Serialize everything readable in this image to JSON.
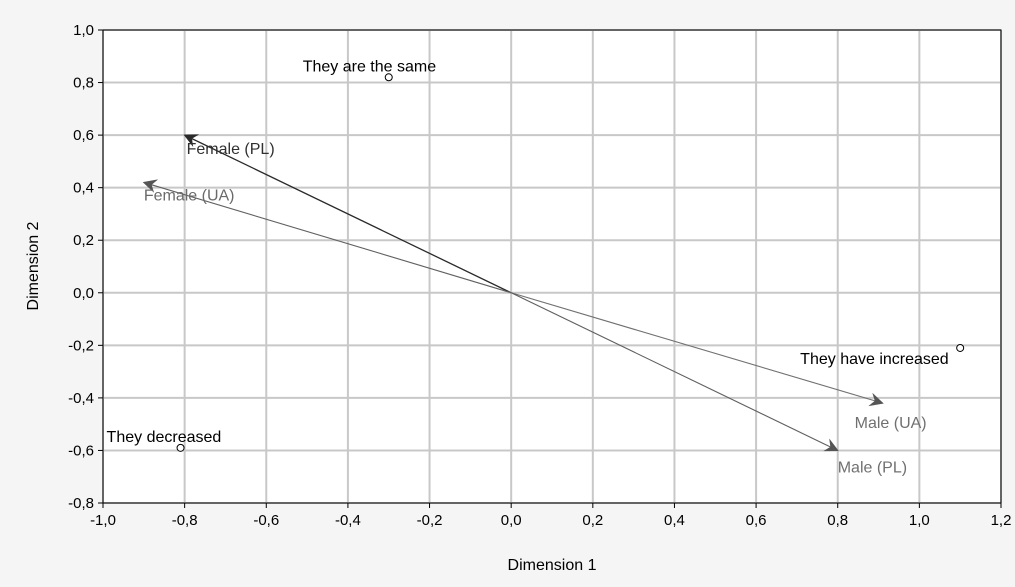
{
  "chart_data": {
    "type": "scatter",
    "xlabel": "Dimension 1",
    "ylabel": "Dimension 2",
    "xlim": [
      -1.0,
      1.2
    ],
    "ylim": [
      -0.8,
      1.0
    ],
    "xticks": [
      "-1,0",
      "-0,8",
      "-0,6",
      "-0,4",
      "-0,2",
      "0,0",
      "0,2",
      "0,4",
      "0,6",
      "0,8",
      "1,0",
      "1,2"
    ],
    "yticks": [
      "1,0",
      "0,8",
      "0,6",
      "0,4",
      "0,2",
      "0,0",
      "-0,2",
      "-0,4",
      "-0,6",
      "-0,8"
    ],
    "xtick_values": [
      -1.0,
      -0.8,
      -0.6,
      -0.4,
      -0.2,
      0.0,
      0.2,
      0.4,
      0.6,
      0.8,
      1.0,
      1.2
    ],
    "ytick_values": [
      1.0,
      0.8,
      0.6,
      0.4,
      0.2,
      0.0,
      -0.2,
      -0.4,
      -0.6,
      -0.8
    ],
    "grid": true,
    "points": [
      {
        "label": "They are the same",
        "x": -0.3,
        "y": 0.82
      },
      {
        "label": "They have increased",
        "x": 1.1,
        "y": -0.21
      },
      {
        "label": "They decreased",
        "x": -0.81,
        "y": -0.59
      }
    ],
    "vectors": [
      {
        "label": "Female (PL)",
        "x": -0.8,
        "y": 0.6,
        "color": "#2a2a2a"
      },
      {
        "label": "Female (UA)",
        "x": -0.9,
        "y": 0.42,
        "color": "#606060"
      },
      {
        "label": "Male (UA)",
        "x": 0.91,
        "y": -0.42,
        "color": "#707070"
      },
      {
        "label": "Male (PL)",
        "x": 0.8,
        "y": -0.6,
        "color": "#606060"
      }
    ],
    "colors": {
      "background": "#f5f5f5",
      "plot_area": "#ffffff",
      "grid": "#c8c8c8",
      "axis": "#000000"
    }
  }
}
